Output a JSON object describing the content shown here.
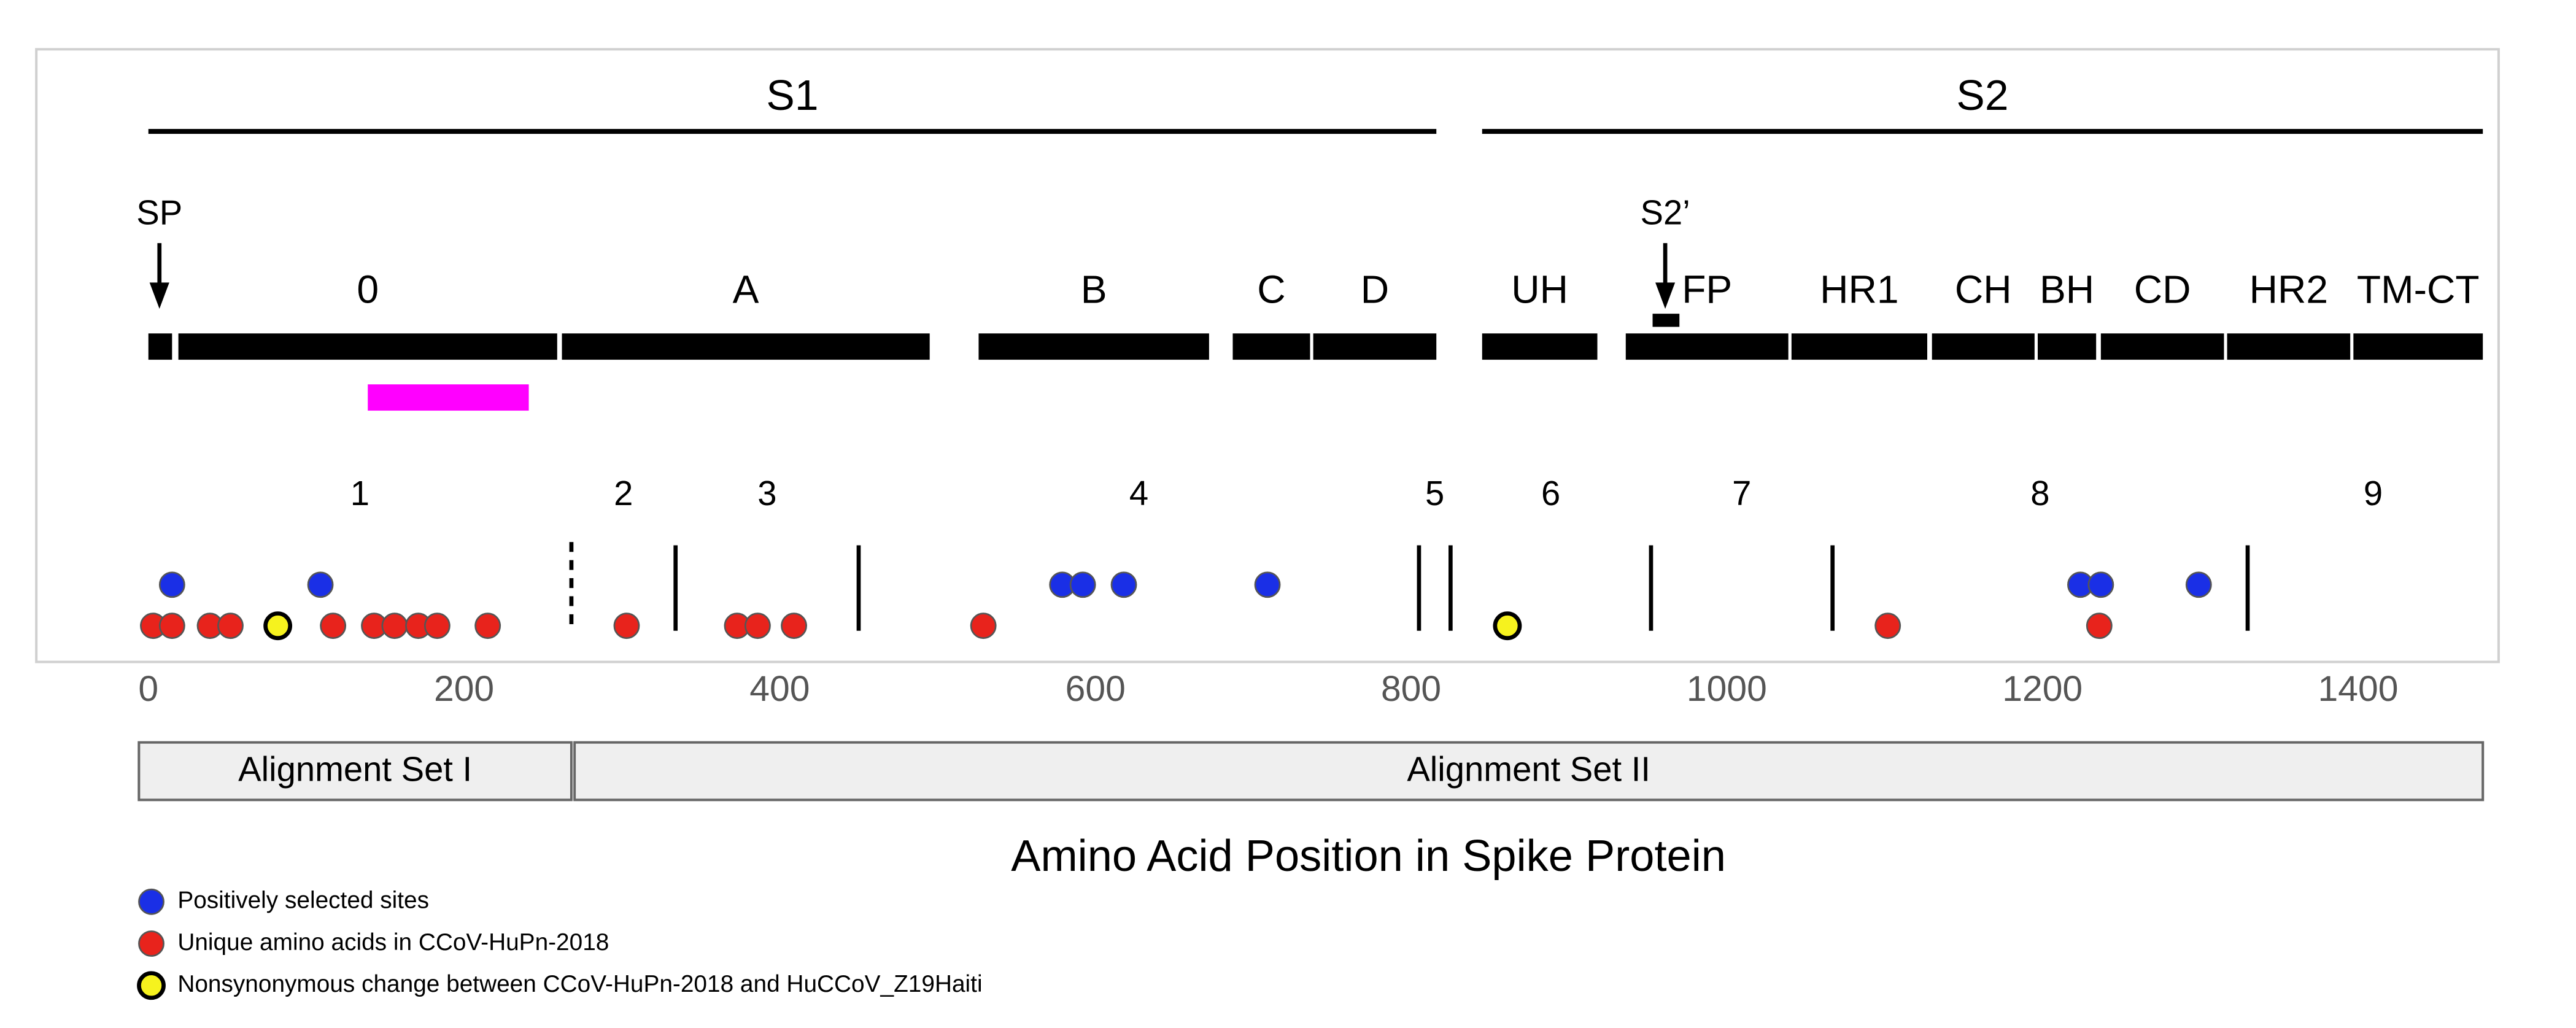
{
  "chart_data": {
    "type": "scatter",
    "xlabel": "Amino Acid Position in Spike Protein",
    "xlim": [
      -71,
      1489
    ],
    "xticks": [
      0,
      200,
      400,
      600,
      800,
      1000,
      1200,
      1400
    ],
    "series": [
      {
        "name": "Positively selected sites",
        "color": "#1a2fe6",
        "values": [
          15,
          109,
          579,
          592,
          618,
          709,
          1224,
          1237,
          1299
        ]
      },
      {
        "name": "Unique amino acids in CCoV-HuPn-2018",
        "color": "#e8231c",
        "values": [
          3,
          15,
          39,
          52,
          117,
          143,
          156,
          171,
          183,
          215,
          303,
          373,
          386,
          409,
          529,
          1102,
          1236
        ]
      },
      {
        "name": "Nonsynonymous change between CCoV-HuPn-2018 and HuCCoV_Z19Haiti",
        "color": "#f6f21e",
        "values": [
          82,
          861
        ]
      }
    ],
    "subunits": [
      {
        "label": "S1",
        "start": 0,
        "end": 816
      },
      {
        "label": "S2",
        "start": 845,
        "end": 1479
      }
    ],
    "domains": [
      {
        "label": null,
        "start": 0,
        "end": 15
      },
      {
        "label": "0",
        "start": 19,
        "end": 259
      },
      {
        "label": "A",
        "start": 262,
        "end": 495
      },
      {
        "label": "B",
        "start": 526,
        "end": 672
      },
      {
        "label": "C",
        "start": 687,
        "end": 736
      },
      {
        "label": "D",
        "start": 738,
        "end": 816
      },
      {
        "label": "UH",
        "start": 845,
        "end": 918
      },
      {
        "label": "FP",
        "start": 936,
        "end": 1039
      },
      {
        "label": "HR1",
        "start": 1041,
        "end": 1127
      },
      {
        "label": "CH",
        "start": 1130,
        "end": 1195
      },
      {
        "label": "BH",
        "start": 1197,
        "end": 1234
      },
      {
        "label": "CD",
        "start": 1237,
        "end": 1315
      },
      {
        "label": "HR2",
        "start": 1317,
        "end": 1395
      },
      {
        "label": "TM-CT",
        "start": 1397,
        "end": 1479
      }
    ],
    "arrows": [
      {
        "label": "SP",
        "x": 7
      },
      {
        "label": "S2’",
        "x": 961
      }
    ],
    "cleavage_block": {
      "start": 953,
      "end": 970
    },
    "highlight": {
      "start": 139,
      "end": 241,
      "color": "#ff00ff"
    },
    "region_labels": [
      "1",
      "2",
      "3",
      "4",
      "5",
      "6",
      "7",
      "8",
      "9"
    ],
    "region_boundaries": [
      {
        "x": 268,
        "dashed": true
      },
      {
        "x": 334
      },
      {
        "x": 450
      },
      {
        "x": 805
      },
      {
        "x": 825
      },
      {
        "x": 952
      },
      {
        "x": 1067
      },
      {
        "x": 1330
      }
    ],
    "alignment_sets": [
      {
        "label": "Alignment Set I",
        "start": -6,
        "end": 268
      },
      {
        "label": "Alignment Set II",
        "start": 270,
        "end": 1479
      }
    ]
  }
}
